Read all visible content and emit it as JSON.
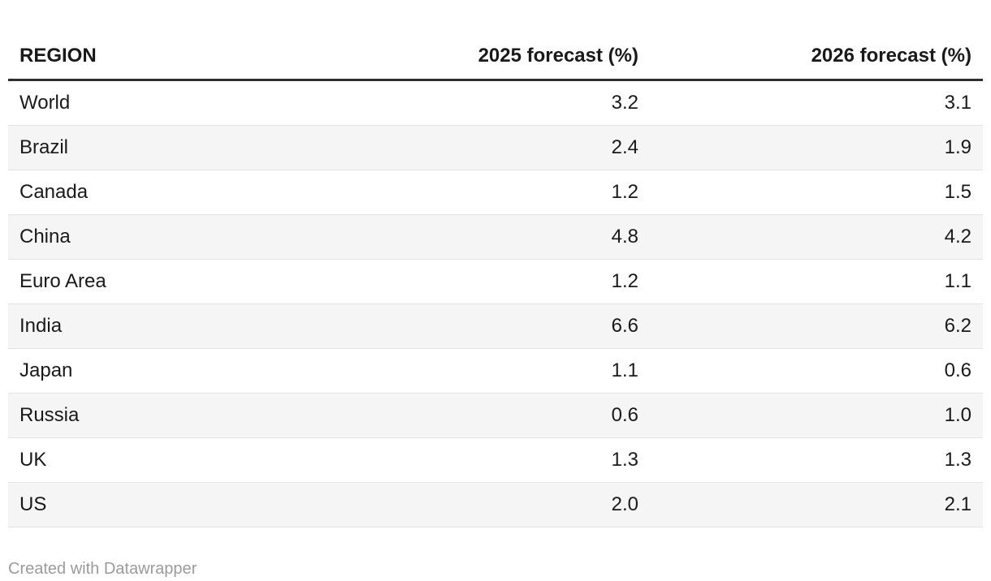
{
  "table": {
    "columns": [
      {
        "label": "REGION",
        "align": "left"
      },
      {
        "label": "2025 forecast (%)",
        "align": "right"
      },
      {
        "label": "2026 forecast (%)",
        "align": "right"
      }
    ],
    "rows": [
      {
        "region": "World",
        "f2025": "3.2",
        "f2026": "3.1"
      },
      {
        "region": "Brazil",
        "f2025": "2.4",
        "f2026": "1.9"
      },
      {
        "region": "Canada",
        "f2025": "1.2",
        "f2026": "1.5"
      },
      {
        "region": "China",
        "f2025": "4.8",
        "f2026": "4.2"
      },
      {
        "region": "Euro Area",
        "f2025": "1.2",
        "f2026": "1.1"
      },
      {
        "region": "India",
        "f2025": "6.6",
        "f2026": "6.2"
      },
      {
        "region": "Japan",
        "f2025": "1.1",
        "f2026": "0.6"
      },
      {
        "region": "Russia",
        "f2025": "0.6",
        "f2026": "1.0"
      },
      {
        "region": "UK",
        "f2025": "1.3",
        "f2026": "1.3"
      },
      {
        "region": "US",
        "f2025": "2.0",
        "f2026": "2.1"
      }
    ]
  },
  "footer": {
    "attribution": "Created with Datawrapper"
  },
  "colors": {
    "text": "#1a1a1a",
    "header_rule": "#2e2e2e",
    "row_stripe": "#f5f5f5",
    "row_separator": "#e3e3e3",
    "footer_text": "#9b9b9b",
    "background": "#ffffff"
  },
  "chart_data": {
    "type": "table",
    "title": "",
    "columns": [
      "REGION",
      "2025 forecast (%)",
      "2026 forecast (%)"
    ],
    "rows": [
      [
        "World",
        3.2,
        3.1
      ],
      [
        "Brazil",
        2.4,
        1.9
      ],
      [
        "Canada",
        1.2,
        1.5
      ],
      [
        "China",
        4.8,
        4.2
      ],
      [
        "Euro Area",
        1.2,
        1.1
      ],
      [
        "India",
        6.6,
        6.2
      ],
      [
        "Japan",
        1.1,
        0.6
      ],
      [
        "Russia",
        0.6,
        1.0
      ],
      [
        "UK",
        1.3,
        1.3
      ],
      [
        "US",
        2.0,
        2.1
      ]
    ],
    "layout_hints": {
      "zebra_striping": true,
      "striped_rows": "even",
      "value_columns_right_aligned": true,
      "header_bold": true,
      "thick_rule_under_header": true
    },
    "attribution": "Created with Datawrapper"
  }
}
